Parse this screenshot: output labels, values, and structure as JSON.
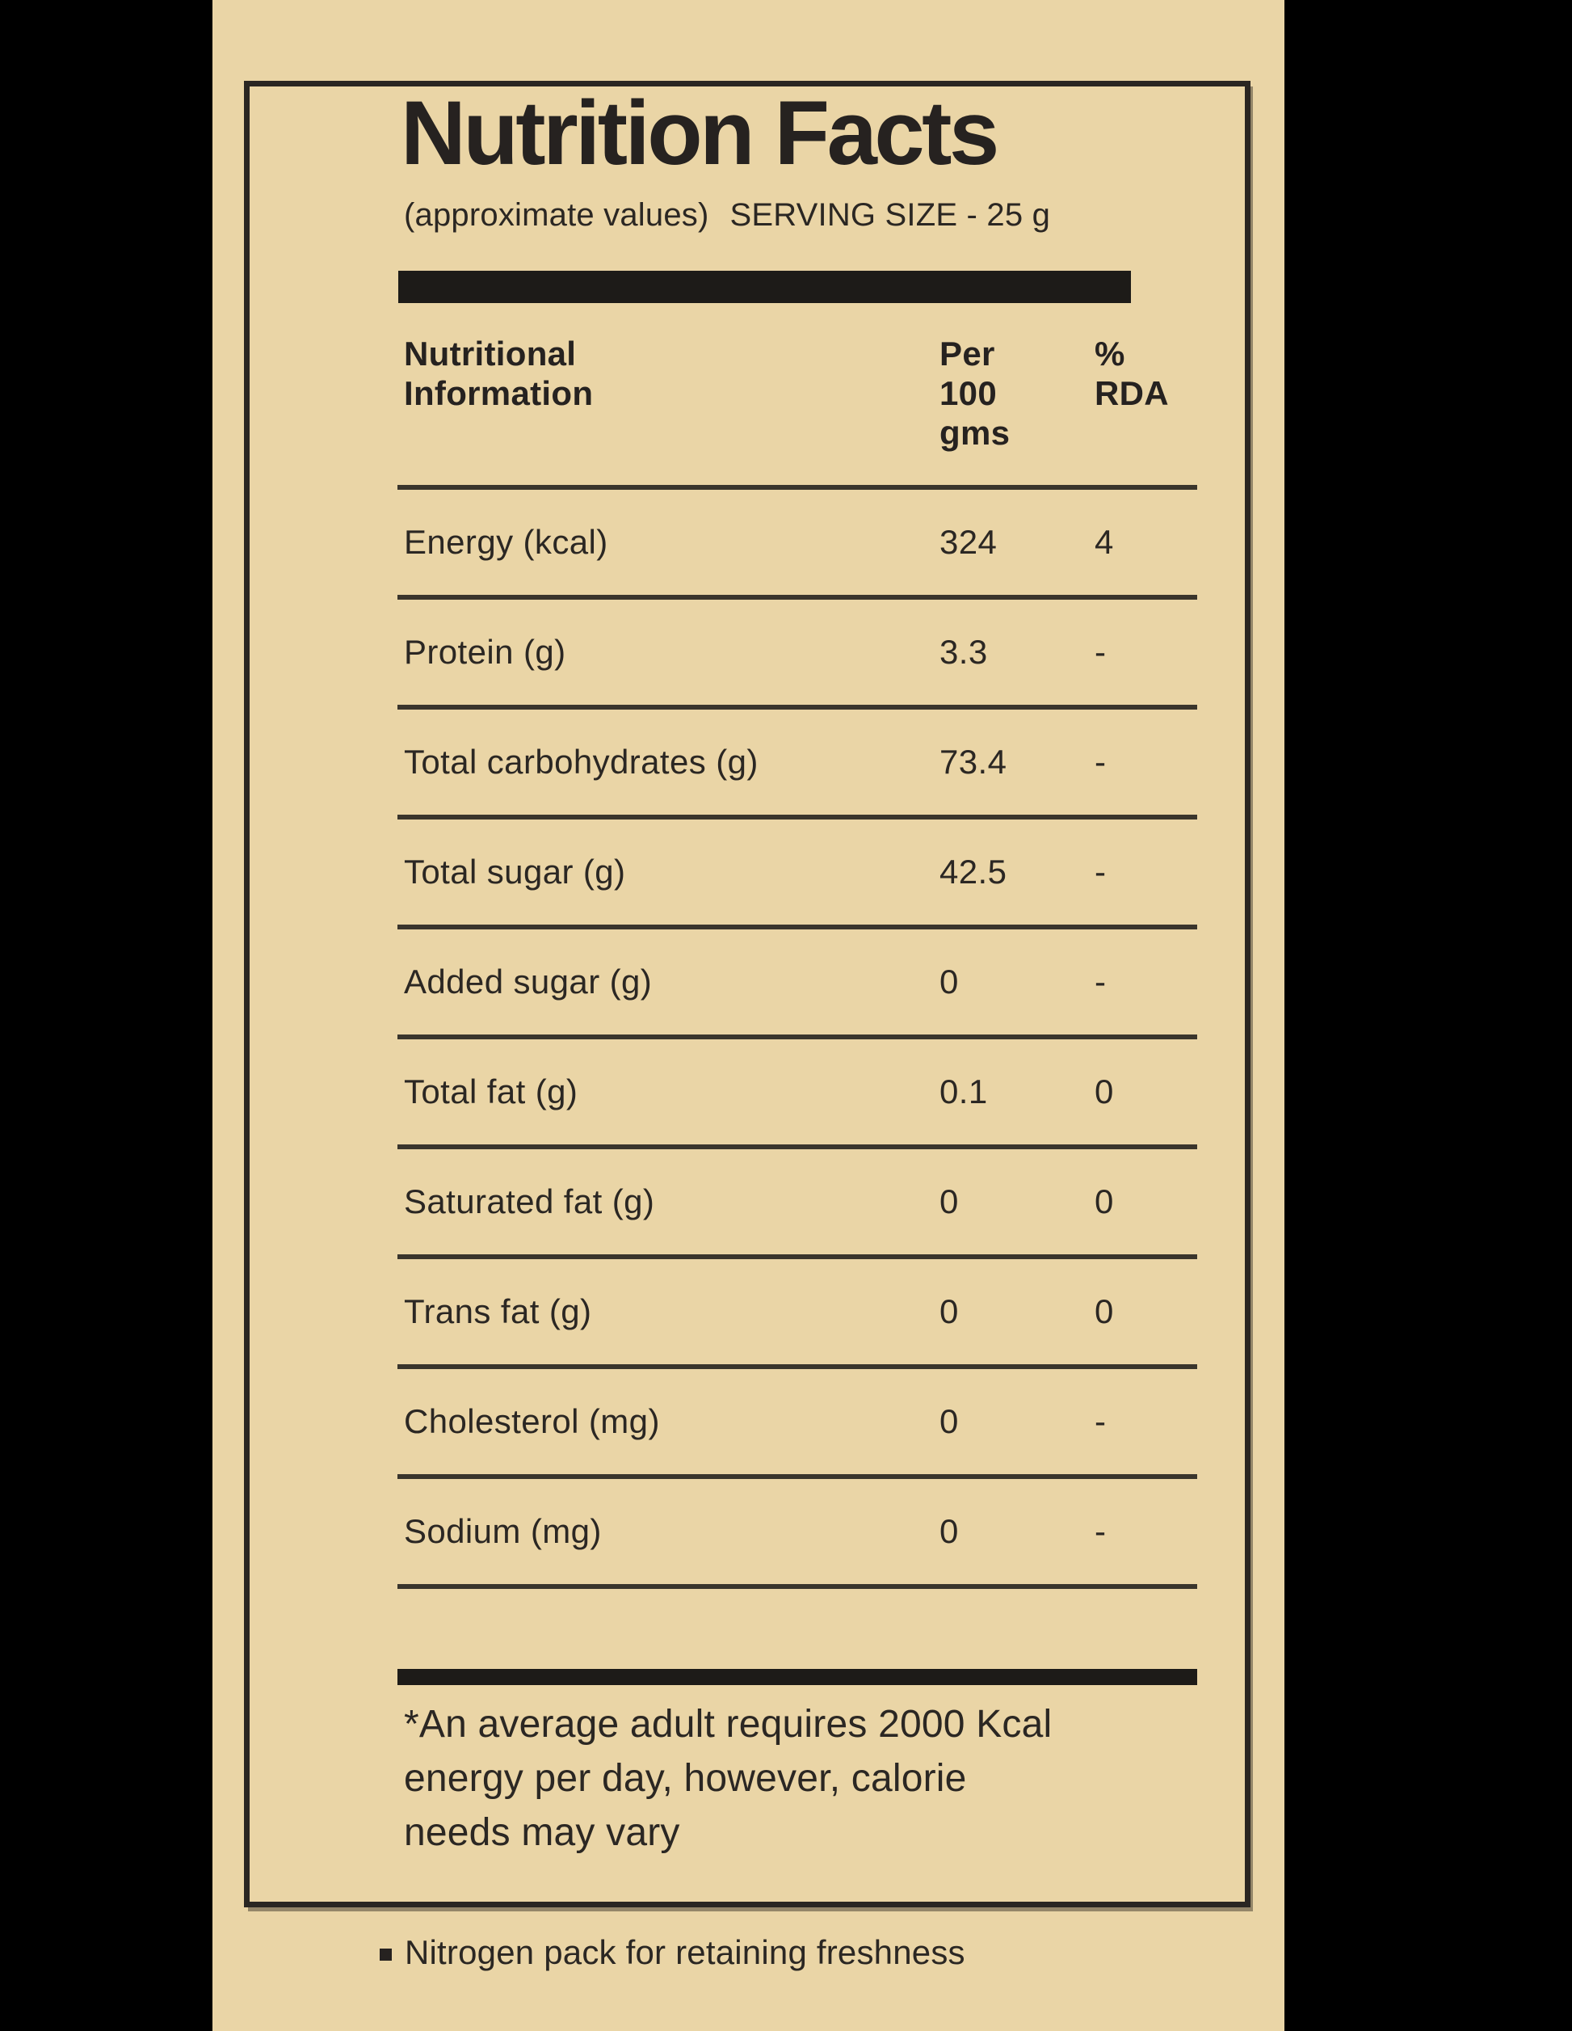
{
  "colors": {
    "background": "#000000",
    "panel": "#ead5a6",
    "ink": "#262220",
    "line": "#3a352c",
    "bar": "#1d1b18"
  },
  "label": {
    "title": "Nutrition Facts",
    "subtitle_note": "(approximate values)",
    "subtitle_serving": "SERVING SIZE - 25 g",
    "footnote": "*An average adult requires 2000 Kcal\nenergy per day, however, calorie\nneeds may vary",
    "freshness_note": "Nitrogen pack for retaining freshness"
  },
  "table": {
    "header": {
      "info": "Nutritional\nInformation",
      "per100": "Per\n100\ngms",
      "rda": "%\nRDA"
    },
    "rows": [
      {
        "label": "Energy (kcal)",
        "per100": "324",
        "rda": "4"
      },
      {
        "label": "Protein (g)",
        "per100": "3.3",
        "rda": "-"
      },
      {
        "label": "Total carbohydrates (g)",
        "per100": "73.4",
        "rda": "-"
      },
      {
        "label": "Total sugar (g)",
        "per100": "42.5",
        "rda": "-"
      },
      {
        "label": "Added sugar (g)",
        "per100": "0",
        "rda": "-"
      },
      {
        "label": "Total fat (g)",
        "per100": "0.1",
        "rda": "0"
      },
      {
        "label": "Saturated fat (g)",
        "per100": "0",
        "rda": "0"
      },
      {
        "label": "Trans fat (g)",
        "per100": "0",
        "rda": "0"
      },
      {
        "label": "Cholesterol (mg)",
        "per100": "0",
        "rda": "-"
      },
      {
        "label": "Sodium (mg)",
        "per100": "0",
        "rda": "-"
      }
    ]
  }
}
